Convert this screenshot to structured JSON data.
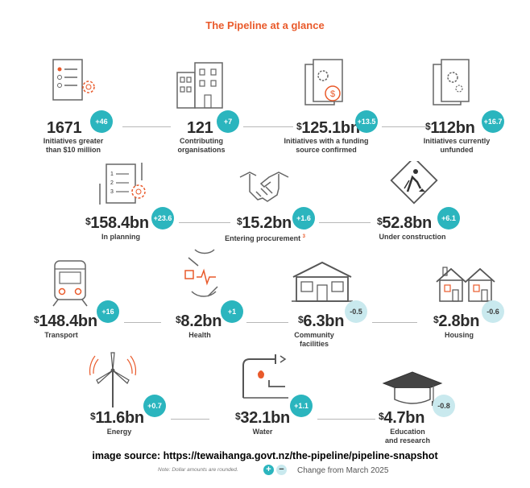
{
  "title": "The Pipeline at a glance",
  "accent_color": "#e95a2b",
  "badge_color": "#2bb5be",
  "badge_negative_color": "#c9e9ee",
  "stats": {
    "initiatives": {
      "value": "1671",
      "label": "Initiatives greater\nthan $10 million",
      "change": "+46",
      "icon": "document-gear-icon"
    },
    "organisations": {
      "value": "121",
      "label": "Contributing\norganisations",
      "change": "+7",
      "icon": "building-icon"
    },
    "funded": {
      "value": "125.1bn",
      "label": "Initiatives with a funding\nsource confirmed",
      "change": "+13.5",
      "icon": "documents-dollar-icon"
    },
    "unfunded": {
      "value": "112bn",
      "label": "Initiatives currently\nunfunded",
      "change": "+16.7",
      "icon": "documents-gear-icon"
    },
    "planning": {
      "value": "158.4bn",
      "label": "In planning",
      "change": "+23.6",
      "icon": "checklist-gear-icon"
    },
    "procurement": {
      "value": "15.2bn",
      "label": "Entering procurement",
      "footnote": "3",
      "change": "+1.6",
      "icon": "handshake-icon"
    },
    "construction": {
      "value": "52.8bn",
      "label": "Under construction",
      "change": "+6.1",
      "icon": "construction-sign-icon"
    },
    "transport": {
      "value": "148.4bn",
      "label": "Transport",
      "change": "+16",
      "icon": "train-icon"
    },
    "health": {
      "value": "8.2bn",
      "label": "Health",
      "change": "+1",
      "icon": "health-hands-icon"
    },
    "community": {
      "value": "6.3bn",
      "label": "Community\nfacilities",
      "change": "-0.5",
      "icon": "community-building-icon"
    },
    "housing": {
      "value": "2.8bn",
      "label": "Housing",
      "change": "-0.6",
      "icon": "houses-icon"
    },
    "energy": {
      "value": "11.6bn",
      "label": "Energy",
      "change": "+0.7",
      "icon": "wind-turbine-icon"
    },
    "water": {
      "value": "32.1bn",
      "label": "Water",
      "change": "+1.1",
      "icon": "tap-icon"
    },
    "education": {
      "value": "4.7bn",
      "label": "Education\nand research",
      "change": "-0.8",
      "icon": "graduation-cap-icon"
    }
  },
  "currency_symbol": "$",
  "image_source": "image source: https://tewaihanga.govt.nz/the-pipeline/pipeline-snapshot",
  "note": "Note: Dollar amounts are rounded.",
  "legend": {
    "plus": "+",
    "minus": "−",
    "text": "Change from March 2025"
  }
}
